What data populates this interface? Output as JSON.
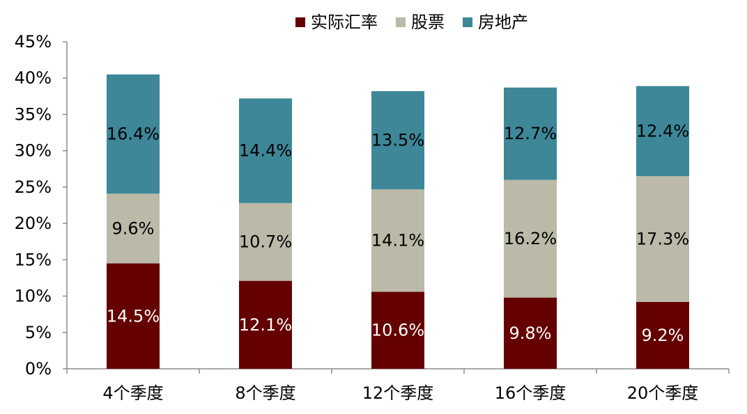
{
  "chart_data": {
    "type": "bar",
    "stacked": true,
    "categories": [
      "4个季度",
      "8个季度",
      "12个季度",
      "16个季度",
      "20个季度"
    ],
    "series": [
      {
        "name": "实际汇率",
        "color": "#650000",
        "label_color": "#ffffff",
        "values": [
          14.5,
          12.1,
          10.6,
          9.8,
          9.2
        ],
        "labels": [
          "14.5%",
          "12.1%",
          "10.6%",
          "9.8%",
          "9.2%"
        ]
      },
      {
        "name": "股票",
        "color": "#bbb9a7",
        "label_color": "#000000",
        "values": [
          9.6,
          10.7,
          14.1,
          16.2,
          17.3
        ],
        "labels": [
          "9.6%",
          "10.7%",
          "14.1%",
          "16.2%",
          "17.3%"
        ]
      },
      {
        "name": "房地产",
        "color": "#3d8799",
        "label_color": "#000000",
        "values": [
          16.4,
          14.4,
          13.5,
          12.7,
          12.4
        ],
        "labels": [
          "16.4%",
          "14.4%",
          "13.5%",
          "12.7%",
          "12.4%"
        ]
      }
    ],
    "ylim": [
      0,
      45
    ],
    "yticks": [
      0,
      5,
      10,
      15,
      20,
      25,
      30,
      35,
      40,
      45
    ],
    "ytick_labels": [
      "0%",
      "5%",
      "10%",
      "15%",
      "20%",
      "25%",
      "30%",
      "35%",
      "40%",
      "45%"
    ],
    "grid": false,
    "legend_position": "top-center"
  }
}
